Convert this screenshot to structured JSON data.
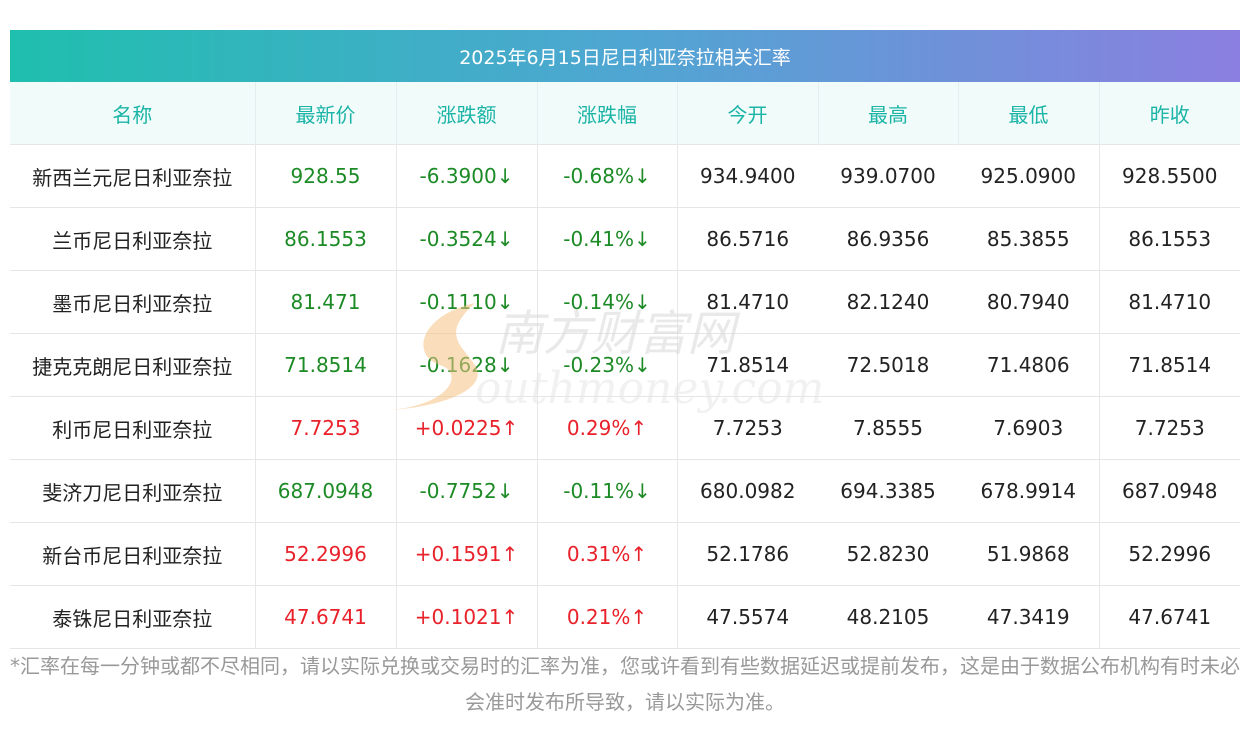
{
  "title": "2025年6月15日尼日利亚奈拉相关汇率",
  "columns": [
    "名称",
    "最新价",
    "涨跌额",
    "涨跌幅",
    "今开",
    "最高",
    "最低",
    "昨收"
  ],
  "rows": [
    {
      "name": "新西兰元尼日利亚奈拉",
      "latest": "928.55",
      "change": "-6.3900↓",
      "pct": "-0.68%↓",
      "open": "934.9400",
      "high": "939.0700",
      "low": "925.0900",
      "prev": "928.5500",
      "trend": "down"
    },
    {
      "name": "兰币尼日利亚奈拉",
      "latest": "86.1553",
      "change": "-0.3524↓",
      "pct": "-0.41%↓",
      "open": "86.5716",
      "high": "86.9356",
      "low": "85.3855",
      "prev": "86.1553",
      "trend": "down"
    },
    {
      "name": "墨币尼日利亚奈拉",
      "latest": "81.471",
      "change": "-0.1110↓",
      "pct": "-0.14%↓",
      "open": "81.4710",
      "high": "82.1240",
      "low": "80.7940",
      "prev": "81.4710",
      "trend": "down"
    },
    {
      "name": "捷克克朗尼日利亚奈拉",
      "latest": "71.8514",
      "change": "-0.1628↓",
      "pct": "-0.23%↓",
      "open": "71.8514",
      "high": "72.5018",
      "low": "71.4806",
      "prev": "71.8514",
      "trend": "down"
    },
    {
      "name": "利币尼日利亚奈拉",
      "latest": "7.7253",
      "change": "+0.0225↑",
      "pct": "0.29%↑",
      "open": "7.7253",
      "high": "7.8555",
      "low": "7.6903",
      "prev": "7.7253",
      "trend": "up"
    },
    {
      "name": "斐济刀尼日利亚奈拉",
      "latest": "687.0948",
      "change": "-0.7752↓",
      "pct": "-0.11%↓",
      "open": "680.0982",
      "high": "694.3385",
      "low": "678.9914",
      "prev": "687.0948",
      "trend": "down"
    },
    {
      "name": "新台币尼日利亚奈拉",
      "latest": "52.2996",
      "change": "+0.1591↑",
      "pct": "0.31%↑",
      "open": "52.1786",
      "high": "52.8230",
      "low": "51.9868",
      "prev": "52.2996",
      "trend": "up"
    },
    {
      "name": "泰铢尼日利亚奈拉",
      "latest": "47.6741",
      "change": "+0.1021↑",
      "pct": "0.21%↑",
      "open": "47.5574",
      "high": "48.2105",
      "low": "47.3419",
      "prev": "47.6741",
      "trend": "up"
    }
  ],
  "watermark": {
    "cn": "南方财富网",
    "en": "outhmoney.com"
  },
  "footnote": "*汇率在每一分钟或都不尽相同，请以实际兑换或交易时的汇率为准，您或许看到有些数据延迟或提前发布，这是由于数据公布机构有时未必会准时发布所导致，请以实际为准。",
  "colors": {
    "up": "#e8212a",
    "down": "#1c8a25",
    "header_text": "#1bb4a6",
    "header_bg": "#f0fbfa"
  }
}
